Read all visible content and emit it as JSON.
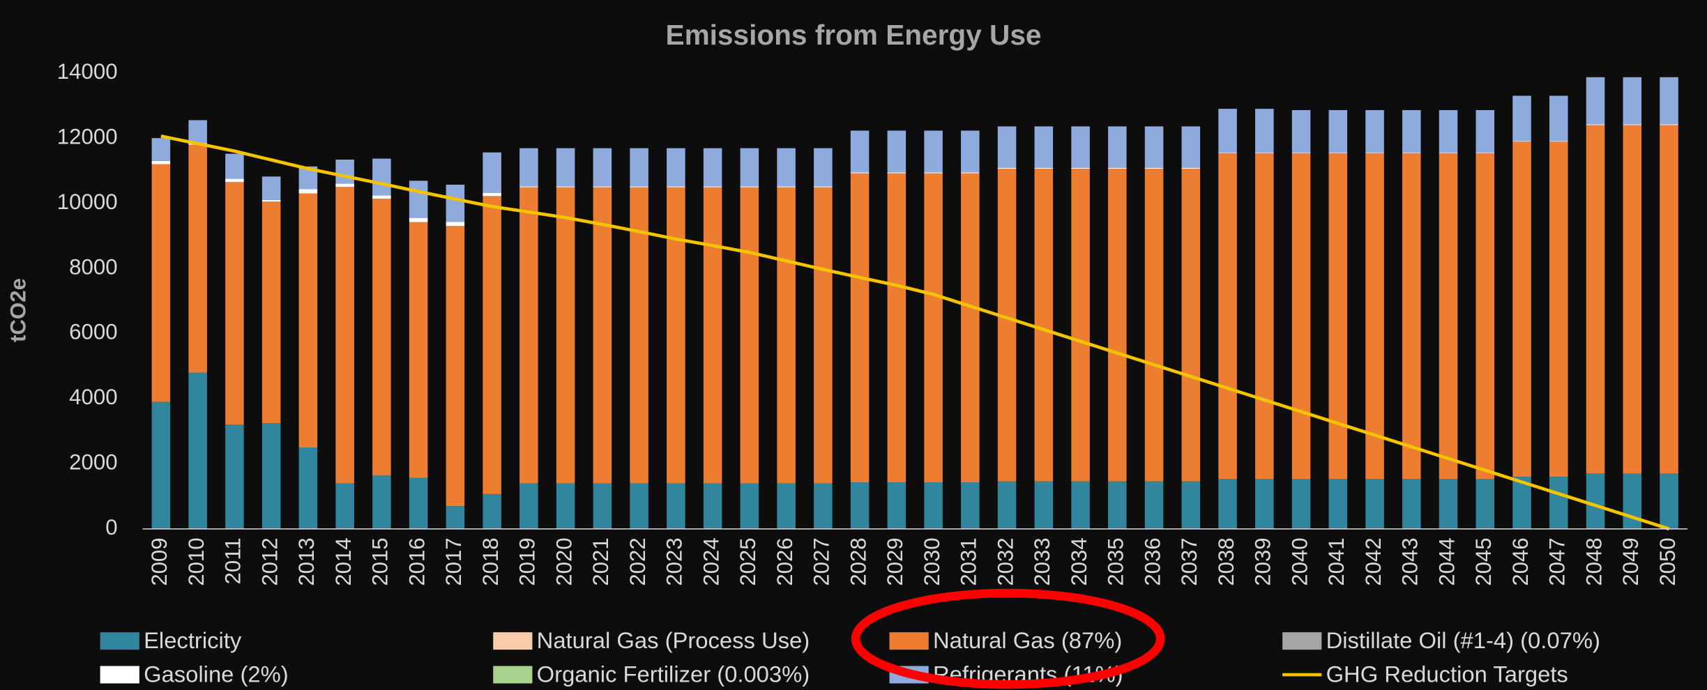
{
  "chart_data": {
    "type": "bar",
    "stacked": true,
    "title": "Emissions from Energy Use",
    "y_label": "tCO2e",
    "categories": [
      "2009",
      "2010",
      "2011",
      "2012",
      "2013",
      "2014",
      "2015",
      "2016",
      "2017",
      "2018",
      "2019",
      "2020",
      "2021",
      "2022",
      "2023",
      "2024",
      "2025",
      "2026",
      "2027",
      "2028",
      "2029",
      "2030",
      "2031",
      "2032",
      "2033",
      "2034",
      "2035",
      "2036",
      "2037",
      "2038",
      "2039",
      "2040",
      "2041",
      "2042",
      "2043",
      "2044",
      "2045",
      "2046",
      "2047",
      "2048",
      "2049",
      "2050"
    ],
    "ylim": [
      0,
      14000
    ],
    "yticks": [
      0,
      2000,
      4000,
      6000,
      8000,
      10000,
      12000,
      14000
    ],
    "legend": "bottom",
    "series": [
      {
        "name": "Electricity",
        "color": "#31859c",
        "values": [
          3900,
          4800,
          3200,
          3250,
          2500,
          1400,
          1640,
          1570,
          700,
          1070,
          1400,
          1400,
          1400,
          1400,
          1400,
          1400,
          1400,
          1400,
          1400,
          1430,
          1430,
          1430,
          1430,
          1460,
          1460,
          1460,
          1460,
          1460,
          1460,
          1530,
          1530,
          1530,
          1530,
          1530,
          1530,
          1530,
          1530,
          1600,
          1600,
          1700,
          1700,
          1700
        ]
      },
      {
        "name": "Natural Gas (Process Use)",
        "color": "#f8cbad",
        "values": [
          0,
          0,
          0,
          0,
          0,
          0,
          0,
          0,
          0,
          0,
          0,
          0,
          0,
          0,
          0,
          0,
          0,
          0,
          0,
          0,
          0,
          0,
          0,
          0,
          0,
          0,
          0,
          0,
          0,
          0,
          0,
          0,
          0,
          0,
          0,
          0,
          0,
          0,
          0,
          0,
          0,
          0
        ]
      },
      {
        "name": "Natural Gas (87%)",
        "color": "#ed7d31",
        "values": [
          7300,
          7000,
          7450,
          6800,
          7800,
          9100,
          8500,
          7850,
          8600,
          9150,
          9090,
          9090,
          9090,
          9090,
          9090,
          9090,
          9090,
          9090,
          9090,
          9490,
          9490,
          9490,
          9490,
          9600,
          9600,
          9600,
          9600,
          9600,
          9600,
          10000,
          10000,
          10000,
          10000,
          10000,
          10000,
          10000,
          10000,
          10290,
          10290,
          10700,
          10700,
          10700
        ]
      },
      {
        "name": "Distillate Oil (#1-4) (0.07%)",
        "color": "#a5a5a5",
        "values": [
          0,
          0,
          0,
          0,
          0,
          0,
          0,
          0,
          0,
          0,
          0,
          0,
          0,
          0,
          0,
          0,
          0,
          0,
          0,
          0,
          0,
          0,
          0,
          0,
          0,
          0,
          0,
          0,
          0,
          0,
          0,
          0,
          0,
          0,
          0,
          0,
          0,
          0,
          0,
          0,
          0,
          0
        ]
      },
      {
        "name": "Gasoline (2%)",
        "color": "#ffffff",
        "values": [
          100,
          50,
          100,
          50,
          130,
          100,
          100,
          130,
          130,
          100,
          30,
          30,
          30,
          30,
          30,
          30,
          30,
          30,
          30,
          30,
          30,
          30,
          30,
          30,
          30,
          30,
          30,
          30,
          30,
          20,
          20,
          20,
          20,
          20,
          20,
          20,
          20,
          20,
          20,
          20,
          20,
          20
        ]
      },
      {
        "name": "Organic Fertilizer (0.003%)",
        "color": "#a9d18e",
        "values": [
          0,
          0,
          0,
          0,
          0,
          0,
          0,
          0,
          0,
          0,
          0,
          0,
          0,
          0,
          0,
          0,
          0,
          0,
          0,
          0,
          0,
          0,
          0,
          0,
          0,
          0,
          0,
          0,
          0,
          0,
          0,
          0,
          0,
          0,
          0,
          0,
          0,
          0,
          0,
          0,
          0,
          0
        ]
      },
      {
        "name": "Refrigerants (11%)",
        "color": "#8faadc",
        "values": [
          700,
          700,
          770,
          720,
          700,
          740,
          1130,
          1140,
          1140,
          1240,
          1170,
          1170,
          1170,
          1170,
          1170,
          1170,
          1170,
          1170,
          1170,
          1280,
          1280,
          1280,
          1280,
          1270,
          1270,
          1270,
          1270,
          1270,
          1270,
          1350,
          1350,
          1310,
          1310,
          1310,
          1310,
          1310,
          1310,
          1390,
          1390,
          1450,
          1450,
          1450
        ]
      },
      {
        "name": "GHG Reduction Targets",
        "color": "#f5c400",
        "type": "line",
        "values": [
          12060,
          11830,
          11600,
          11330,
          11060,
          10830,
          10600,
          10360,
          10130,
          9900,
          9730,
          9560,
          9350,
          9130,
          8900,
          8700,
          8490,
          8230,
          7970,
          7720,
          7480,
          7200,
          6840,
          6480,
          6120,
          5760,
          5400,
          5040,
          4680,
          4320,
          3960,
          3600,
          3240,
          2880,
          2520,
          2160,
          1800,
          1440,
          1080,
          720,
          360,
          0
        ]
      }
    ]
  }
}
